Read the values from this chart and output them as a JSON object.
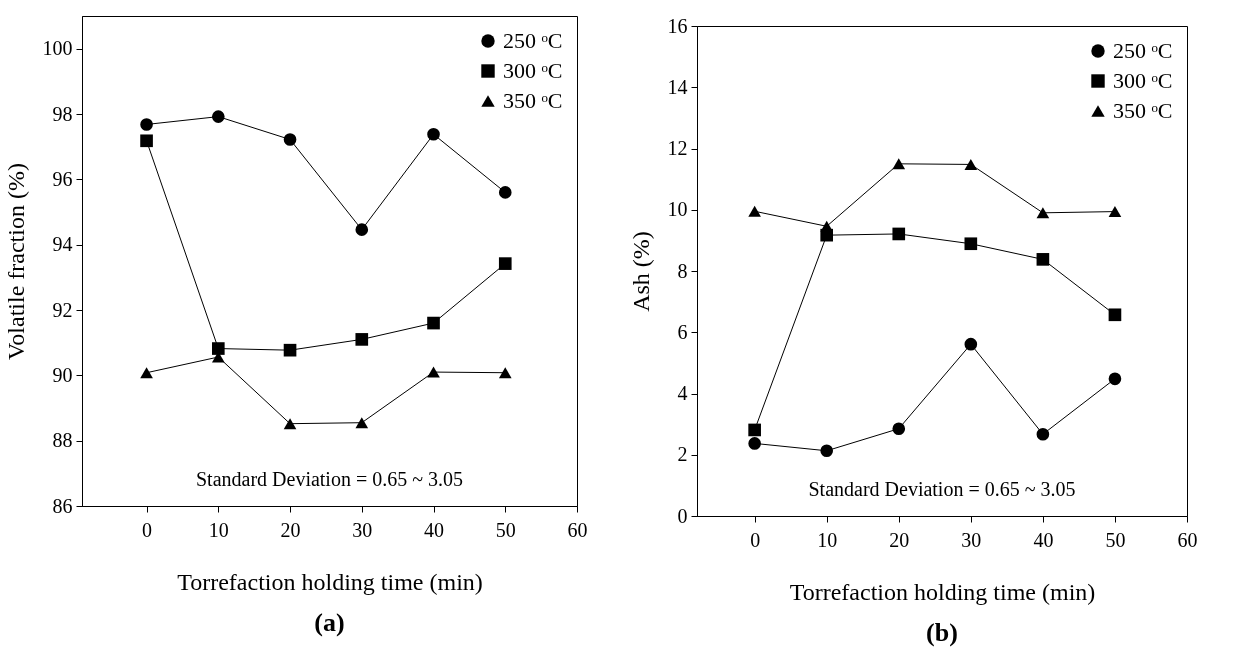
{
  "chart_data": [
    {
      "type": "line",
      "title": "(a)",
      "xlabel": "Torrefaction holding time (min)",
      "ylabel": "Volatile fraction (%)",
      "x": [
        0,
        10,
        20,
        30,
        40,
        50
      ],
      "series": [
        {
          "name": "250 ᵒC",
          "color": "#000000",
          "marker": "circle",
          "values": [
            97.68,
            97.92,
            97.22,
            94.46,
            97.38,
            95.6
          ]
        },
        {
          "name": "300 ᵒC",
          "color": "#000000",
          "marker": "square",
          "values": [
            97.18,
            90.82,
            90.77,
            91.1,
            91.6,
            93.42
          ]
        },
        {
          "name": "350 ᵒC",
          "color": "#000000",
          "marker": "triangle",
          "values": [
            90.08,
            90.56,
            88.52,
            88.55,
            90.1,
            90.08
          ]
        }
      ],
      "xlim": [
        -9,
        60
      ],
      "xticks": [
        0,
        10,
        20,
        30,
        40,
        50,
        60
      ],
      "ylim": [
        86,
        101
      ],
      "yticks": [
        86,
        88,
        90,
        92,
        94,
        96,
        98,
        100
      ],
      "annotations": [
        "Standard Deviation = 0.65 ~ 3.05"
      ],
      "legend": "top right",
      "grid": false
    },
    {
      "type": "line",
      "title": "(b)",
      "xlabel": "Torrefaction holding time (min)",
      "ylabel": "Ash (%)",
      "x": [
        0,
        10,
        20,
        30,
        40,
        50
      ],
      "series": [
        {
          "name": "250 ᵒC",
          "color": "#000000",
          "marker": "circle",
          "values": [
            2.37,
            2.13,
            2.85,
            5.61,
            2.67,
            4.48
          ]
        },
        {
          "name": "300 ᵒC",
          "color": "#000000",
          "marker": "square",
          "values": [
            2.81,
            9.17,
            9.21,
            8.89,
            8.38,
            6.57
          ]
        },
        {
          "name": "350 ᵒC",
          "color": "#000000",
          "marker": "triangle",
          "values": [
            9.95,
            9.46,
            11.5,
            11.48,
            9.9,
            9.94
          ]
        }
      ],
      "xlim": [
        -8,
        60
      ],
      "xticks": [
        0,
        10,
        20,
        30,
        40,
        50,
        60
      ],
      "ylim": [
        0,
        16
      ],
      "yticks": [
        0,
        2,
        4,
        6,
        8,
        10,
        12,
        14,
        16
      ],
      "annotations": [
        "Standard Deviation = 0.65 ~ 3.05"
      ],
      "legend": "top right",
      "grid": false
    }
  ]
}
